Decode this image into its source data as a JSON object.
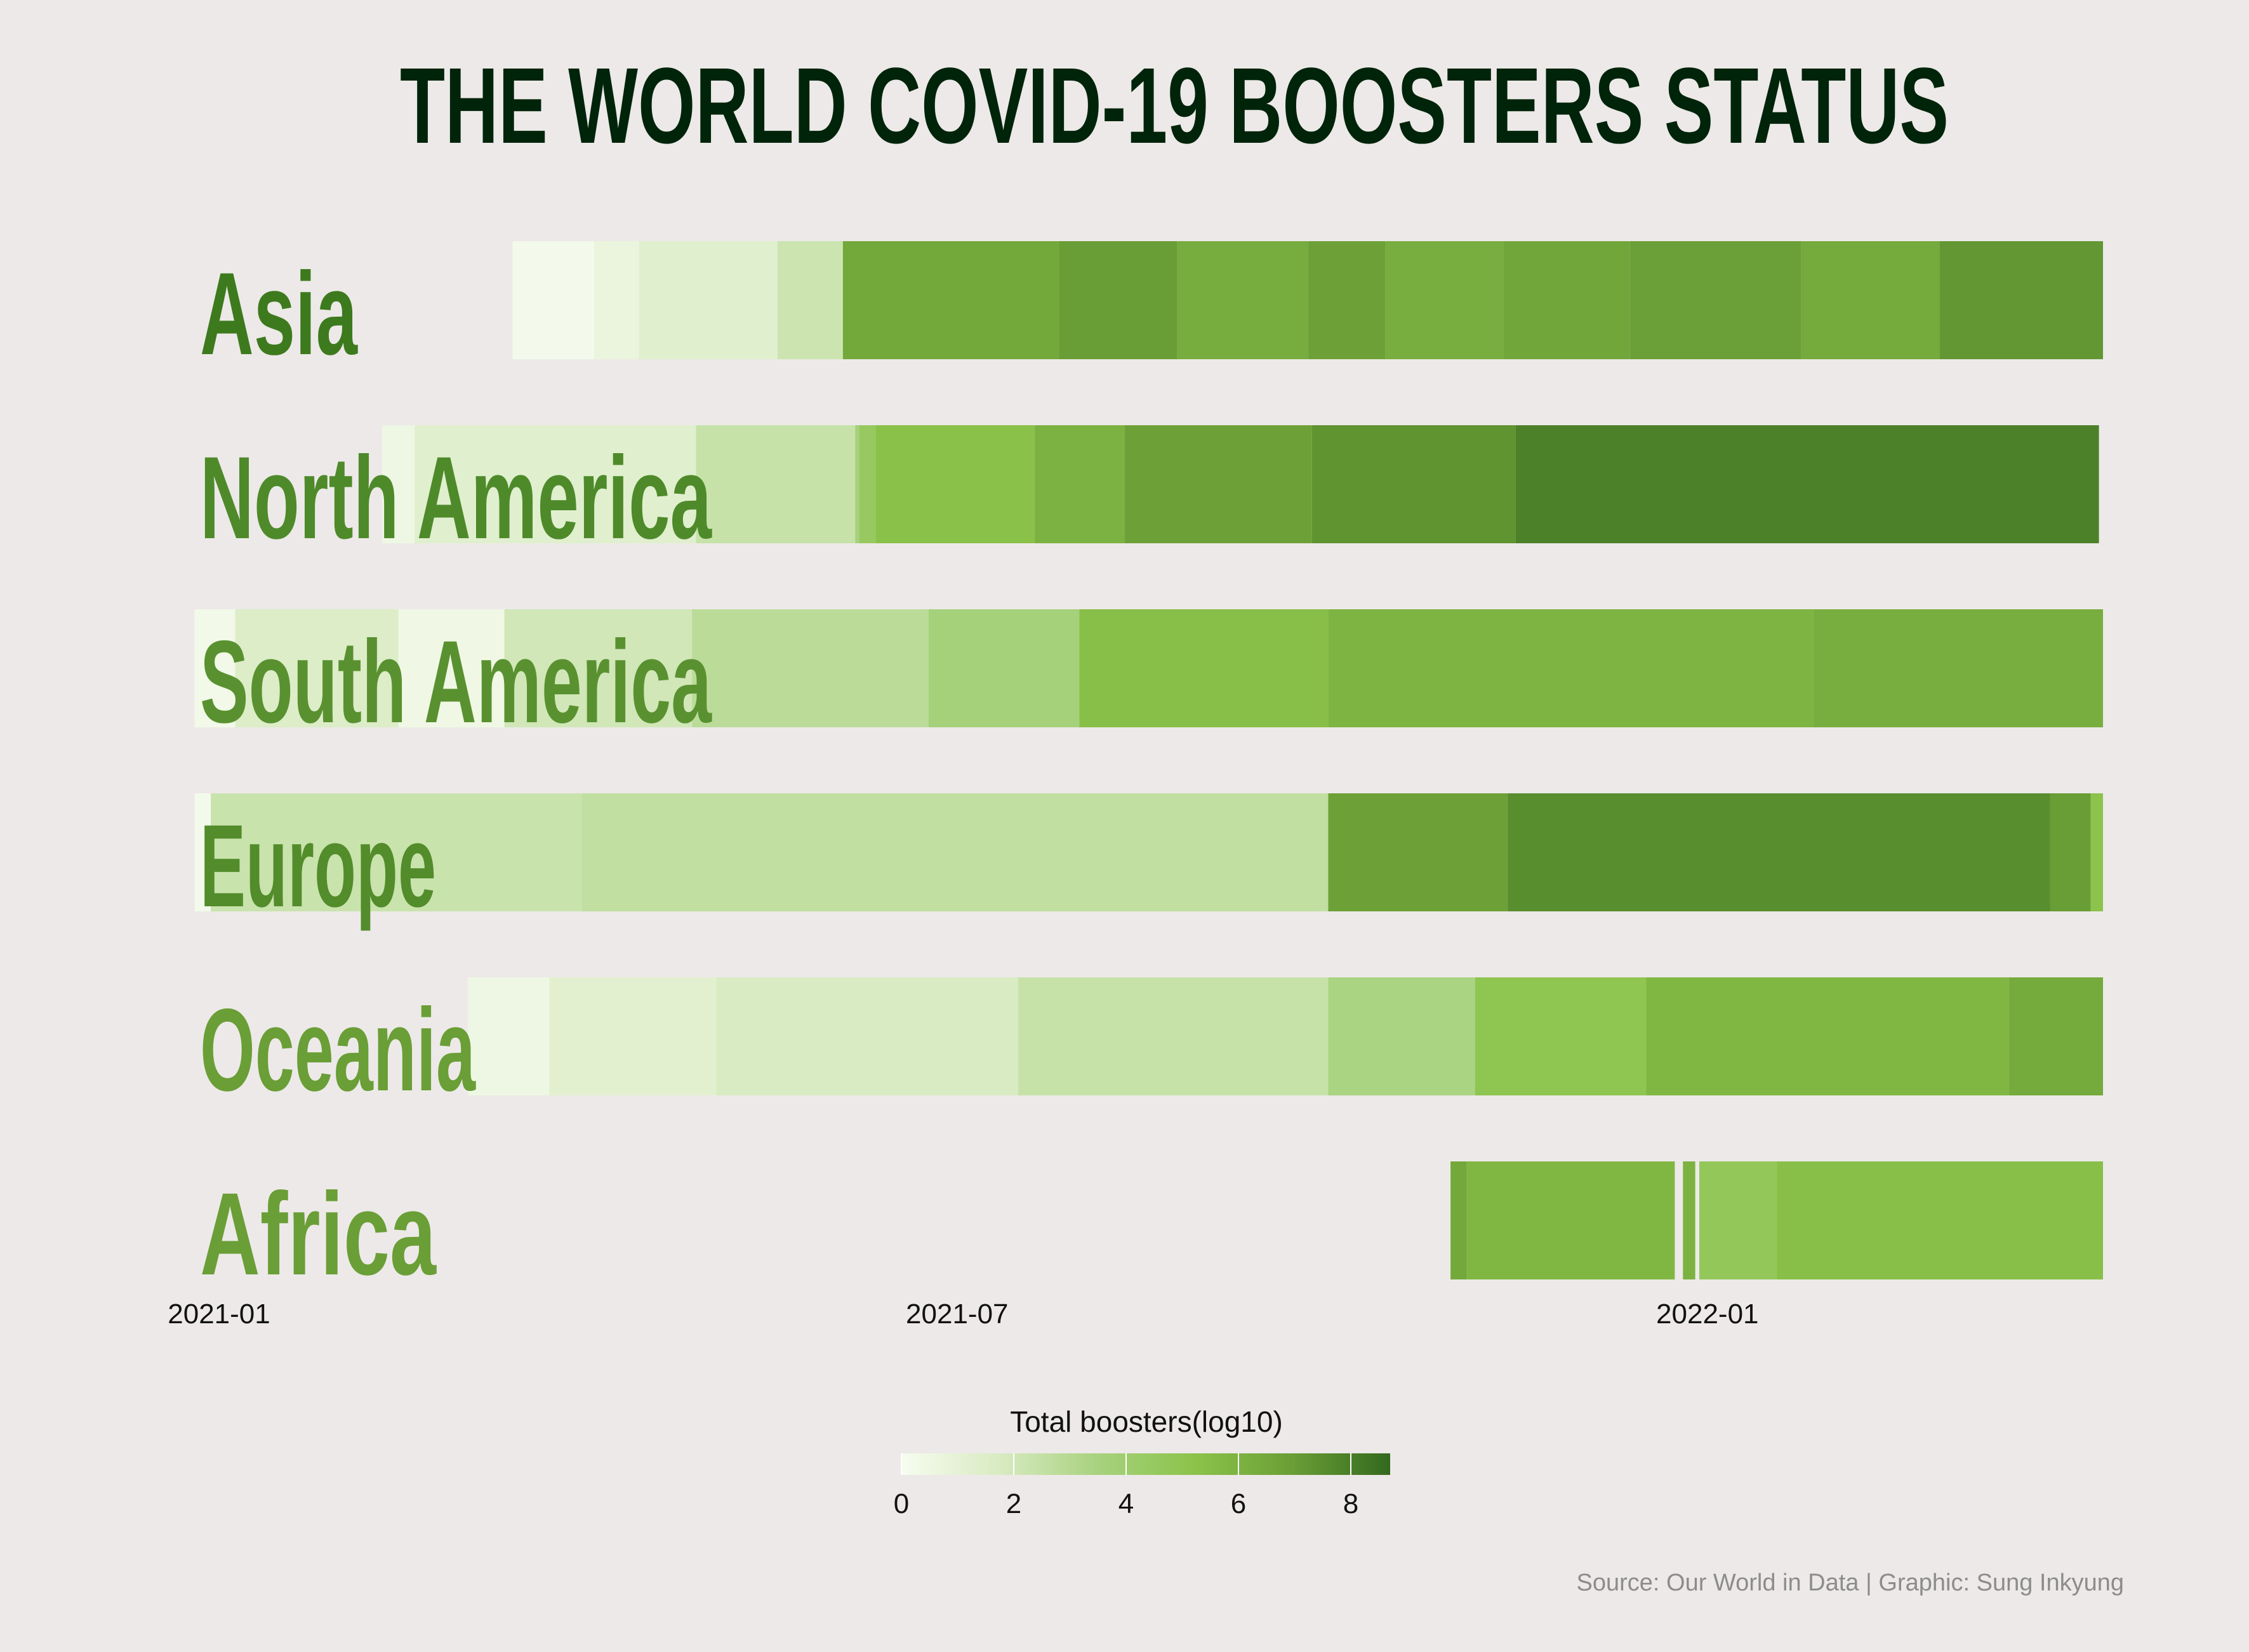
{
  "chart_data": {
    "type": "heatmap",
    "title": "THE WORLD COVID-19 BOOSTERS STATUS",
    "x_axis": {
      "type": "date",
      "range": [
        "2020-12-25",
        "2022-04-08"
      ],
      "ticks": [
        {
          "date": "2021-01-01",
          "label": "2021-01"
        },
        {
          "date": "2021-07-01",
          "label": "2021-07"
        },
        {
          "date": "2022-01-01",
          "label": "2022-01"
        }
      ]
    },
    "legend": {
      "title": "Total boosters(log10)",
      "position": "bottom-center",
      "range": [
        0,
        8.7
      ],
      "ticks": [
        0,
        2,
        4,
        6,
        8
      ],
      "colors": [
        "#f7fcf0",
        "#d8ebc2",
        "#a8d27f",
        "#8bc34a",
        "#6a9e36",
        "#33691e"
      ]
    },
    "rows": [
      {
        "continent": "Asia",
        "label_color": "#3d7a1e",
        "segments": [
          {
            "start": "2021-03-14",
            "end": "2021-04-03",
            "value": 0.2
          },
          {
            "start": "2021-04-03",
            "end": "2021-04-14",
            "value": 0.7
          },
          {
            "start": "2021-04-14",
            "end": "2021-05-18",
            "value": 1.3
          },
          {
            "start": "2021-05-18",
            "end": "2021-06-03",
            "value": 2.2
          },
          {
            "start": "2021-06-03",
            "end": "2021-07-26",
            "value": 6.5
          },
          {
            "start": "2021-07-26",
            "end": "2021-08-24",
            "value": 7.0
          },
          {
            "start": "2021-08-24",
            "end": "2021-09-25",
            "value": 6.3
          },
          {
            "start": "2021-09-25",
            "end": "2021-10-14",
            "value": 6.8
          },
          {
            "start": "2021-10-14",
            "end": "2021-11-12",
            "value": 6.2
          },
          {
            "start": "2021-11-12",
            "end": "2021-12-13",
            "value": 6.6
          },
          {
            "start": "2021-12-13",
            "end": "2022-01-24",
            "value": 6.9
          },
          {
            "start": "2022-01-24",
            "end": "2022-02-27",
            "value": 6.4
          },
          {
            "start": "2022-02-27",
            "end": "2022-04-08",
            "value": 7.2
          }
        ]
      },
      {
        "continent": "North America",
        "label_color": "#4e8a2a",
        "segments": [
          {
            "start": "2021-02-10",
            "end": "2021-02-18",
            "value": 0.5
          },
          {
            "start": "2021-02-18",
            "end": "2021-04-28",
            "value": 1.3
          },
          {
            "start": "2021-04-28",
            "end": "2021-06-06",
            "value": 2.4
          },
          {
            "start": "2021-06-06",
            "end": "2021-06-07",
            "value": 3.6
          },
          {
            "start": "2021-06-07",
            "end": "2021-06-11",
            "value": 4.5
          },
          {
            "start": "2021-06-11",
            "end": "2021-07-20",
            "value": 5.3
          },
          {
            "start": "2021-07-20",
            "end": "2021-08-11",
            "value": 6.0
          },
          {
            "start": "2021-08-11",
            "end": "2021-09-26",
            "value": 6.8
          },
          {
            "start": "2021-09-26",
            "end": "2021-11-15",
            "value": 7.3
          },
          {
            "start": "2021-11-15",
            "end": "2022-04-07",
            "value": 7.9
          }
        ]
      },
      {
        "continent": "South America",
        "label_color": "#5a9130",
        "segments": [
          {
            "start": "2020-12-26",
            "end": "2021-01-05",
            "value": 0.3
          },
          {
            "start": "2021-01-05",
            "end": "2021-02-14",
            "value": 1.5
          },
          {
            "start": "2021-02-14",
            "end": "2021-03-12",
            "value": 0.4
          },
          {
            "start": "2021-03-12",
            "end": "2021-04-27",
            "value": 2.0
          },
          {
            "start": "2021-04-27",
            "end": "2021-06-24",
            "value": 2.8
          },
          {
            "start": "2021-06-24",
            "end": "2021-07-31",
            "value": 3.6
          },
          {
            "start": "2021-07-31",
            "end": "2021-09-30",
            "value": 5.4
          },
          {
            "start": "2021-09-30",
            "end": "2022-01-27",
            "value": 5.9
          },
          {
            "start": "2022-01-27",
            "end": "2022-04-08",
            "value": 6.2
          }
        ]
      },
      {
        "continent": "Europe",
        "label_color": "#538c2b",
        "segments": [
          {
            "start": "2020-12-26",
            "end": "2020-12-30",
            "value": 0.2
          },
          {
            "start": "2020-12-30",
            "end": "2021-03-31",
            "value": 2.3
          },
          {
            "start": "2021-03-31",
            "end": "2021-09-30",
            "value": 2.6
          },
          {
            "start": "2021-09-30",
            "end": "2021-11-13",
            "value": 6.8
          },
          {
            "start": "2021-11-13",
            "end": "2022-03-26",
            "value": 7.5
          },
          {
            "start": "2022-03-26",
            "end": "2022-04-05",
            "value": 7.0
          },
          {
            "start": "2022-04-05",
            "end": "2022-04-08",
            "value": 5.2
          }
        ]
      },
      {
        "continent": "Oceania",
        "label_color": "#6a9e36",
        "segments": [
          {
            "start": "2021-03-03",
            "end": "2021-03-23",
            "value": 0.5
          },
          {
            "start": "2021-03-23",
            "end": "2021-05-03",
            "value": 1.2
          },
          {
            "start": "2021-05-03",
            "end": "2021-07-16",
            "value": 1.7
          },
          {
            "start": "2021-07-16",
            "end": "2021-09-30",
            "value": 2.4
          },
          {
            "start": "2021-09-30",
            "end": "2021-11-05",
            "value": 3.4
          },
          {
            "start": "2021-11-05",
            "end": "2021-12-17",
            "value": 5.0
          },
          {
            "start": "2021-12-17",
            "end": "2022-03-16",
            "value": 5.8
          },
          {
            "start": "2022-03-16",
            "end": "2022-04-08",
            "value": 6.4
          }
        ]
      },
      {
        "continent": "Africa",
        "label_color": "#6a9e36",
        "segments": [
          {
            "start": "2021-10-30",
            "end": "2021-11-03",
            "value": 6.5
          },
          {
            "start": "2021-11-03",
            "end": "2021-12-24",
            "value": 5.8
          },
          {
            "start": "2021-12-26",
            "end": "2021-12-29",
            "value": 6.0
          },
          {
            "start": "2021-12-30",
            "end": "2022-01-18",
            "value": 4.7
          },
          {
            "start": "2022-01-18",
            "end": "2022-04-08",
            "value": 5.4
          }
        ]
      }
    ],
    "source": "Source: Our World in Data | Graphic: Sung Inkyung"
  }
}
